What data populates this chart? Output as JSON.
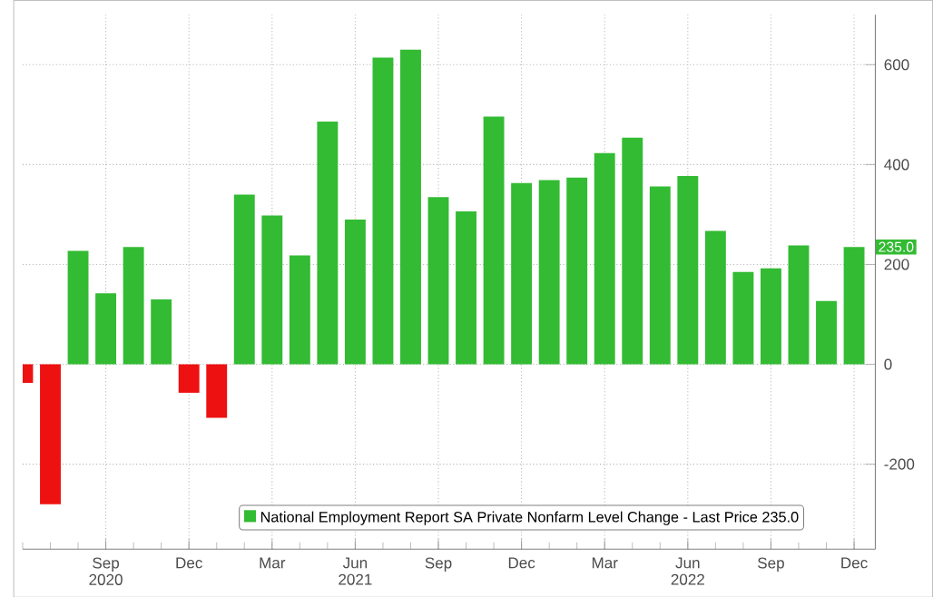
{
  "chart_data": {
    "type": "bar",
    "x": [
      "2020-06",
      "2020-07",
      "2020-08",
      "2020-09",
      "2020-10",
      "2020-11",
      "2020-12",
      "2021-01",
      "2021-02",
      "2021-03",
      "2021-04",
      "2021-05",
      "2021-06",
      "2021-07",
      "2021-08",
      "2021-09",
      "2021-10",
      "2021-11",
      "2021-12",
      "2022-01",
      "2022-02",
      "2022-03",
      "2022-04",
      "2022-05",
      "2022-06",
      "2022-07",
      "2022-08",
      "2022-09",
      "2022-10",
      "2022-11",
      "2022-12"
    ],
    "series": [
      {
        "name": "National Employment Report SA Private Nonfarm Level Change - Last Price 235.0",
        "color": "#33bb33",
        "values": [
          -37,
          -280,
          227,
          142,
          235,
          130,
          -57,
          -107,
          340,
          298,
          218,
          486,
          290,
          614,
          630,
          335,
          306,
          496,
          363,
          369,
          374,
          423,
          454,
          356,
          377,
          267,
          185,
          192,
          238,
          127,
          235
        ],
        "colors": [
          "#ee1111",
          "#ee1111",
          "#33bb33",
          "#33bb33",
          "#33bb33",
          "#33bb33",
          "#ee1111",
          "#ee1111",
          "#33bb33",
          "#33bb33",
          "#33bb33",
          "#33bb33",
          "#33bb33",
          "#33bb33",
          "#33bb33",
          "#33bb33",
          "#33bb33",
          "#33bb33",
          "#33bb33",
          "#33bb33",
          "#33bb33",
          "#33bb33",
          "#33bb33",
          "#33bb33",
          "#33bb33",
          "#33bb33",
          "#33bb33",
          "#33bb33",
          "#33bb33",
          "#33bb33",
          "#33bb33"
        ]
      }
    ],
    "xlim": [
      "2020-06",
      "2022-12-24"
    ],
    "xticks": [
      {
        "value": "2020-09",
        "label": "Sep\n2020"
      },
      {
        "value": "2020-12",
        "label": "Dec"
      },
      {
        "value": "2021-03",
        "label": "Mar"
      },
      {
        "value": "2021-06",
        "label": "Jun\n2021"
      },
      {
        "value": "2021-09",
        "label": "Sep"
      },
      {
        "value": "2021-12",
        "label": "Dec"
      },
      {
        "value": "2022-03",
        "label": "Mar"
      },
      {
        "value": "2022-06",
        "label": "Jun\n2022"
      },
      {
        "value": "2022-09",
        "label": "Sep"
      },
      {
        "value": "2022-12",
        "label": "Dec"
      }
    ],
    "ylim": [
      -370,
      700
    ],
    "yticks": [
      -200,
      0,
      200,
      400,
      600
    ],
    "grid": true,
    "legend": "bottom",
    "annotations": [
      {
        "text": "235.0",
        "y": 235
      }
    ]
  }
}
